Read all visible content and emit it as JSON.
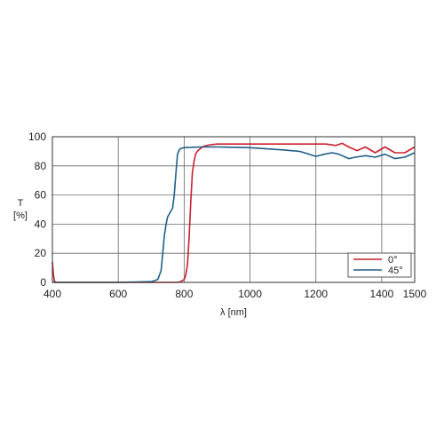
{
  "chart_data": {
    "type": "line",
    "title": "",
    "xlabel": "λ [nm]",
    "ylabel_parts": [
      "T",
      "[%]"
    ],
    "xlim": [
      400,
      1500
    ],
    "ylim": [
      0,
      100
    ],
    "x_ticks": [
      400,
      600,
      800,
      1000,
      1200,
      1400,
      1500
    ],
    "y_ticks": [
      0,
      20,
      40,
      60,
      80,
      100
    ],
    "grid": true,
    "legend_position": "bottom-right",
    "series": [
      {
        "name": "0°",
        "color": "#c8202f",
        "x": [
          400,
          403,
          406,
          410,
          420,
          500,
          600,
          700,
          780,
          790,
          800,
          805,
          810,
          815,
          820,
          825,
          830,
          835,
          840,
          850,
          860,
          880,
          900,
          1000,
          1100,
          1150,
          1200,
          1230,
          1260,
          1280,
          1300,
          1325,
          1350,
          1380,
          1410,
          1440,
          1470,
          1500
        ],
        "y": [
          14,
          6,
          1,
          0,
          0,
          0,
          0,
          0,
          0,
          0.5,
          2,
          5,
          12,
          30,
          55,
          75,
          83,
          88,
          90,
          92,
          93.5,
          94.5,
          95,
          95,
          95,
          95,
          95,
          95,
          94,
          95.5,
          93,
          90.5,
          93,
          89,
          93,
          89,
          89,
          93
        ]
      },
      {
        "name": "45°",
        "color": "#1f5f85",
        "x": [
          400,
          500,
          600,
          700,
          720,
          730,
          735,
          740,
          745,
          750,
          755,
          760,
          765,
          770,
          775,
          780,
          785,
          790,
          800,
          850,
          900,
          1000,
          1100,
          1150,
          1180,
          1200,
          1225,
          1250,
          1270,
          1300,
          1320,
          1350,
          1380,
          1410,
          1440,
          1470,
          1500
        ],
        "y": [
          0,
          0,
          0,
          0.5,
          2,
          8,
          20,
          32,
          40,
          45,
          47,
          49,
          51,
          60,
          75,
          88,
          91,
          92,
          92.5,
          93,
          93,
          92.5,
          91,
          90,
          88,
          86.5,
          88,
          89,
          88,
          85,
          86,
          87,
          86,
          88,
          85,
          86,
          89
        ]
      }
    ]
  }
}
